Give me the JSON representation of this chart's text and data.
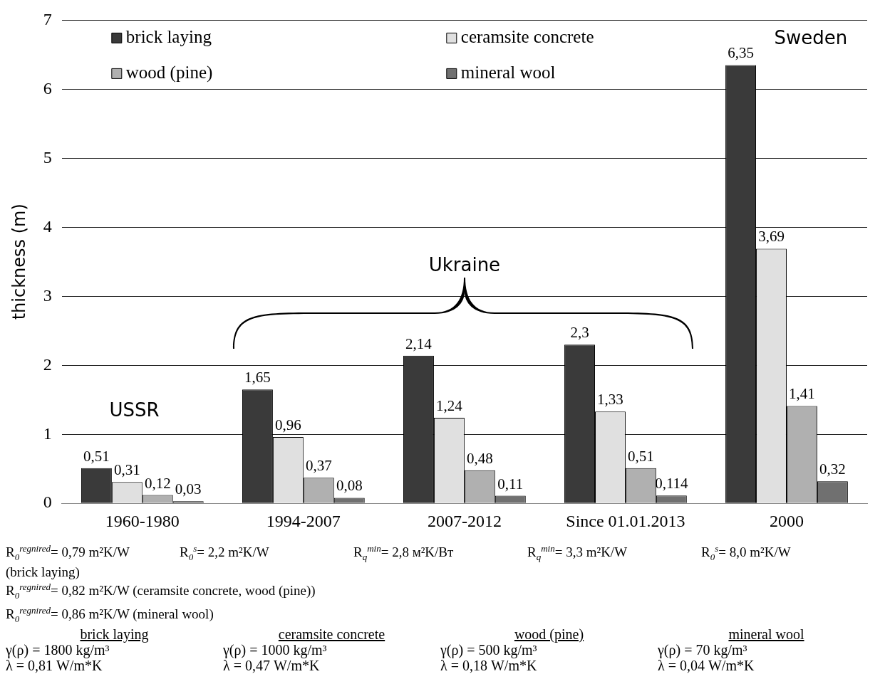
{
  "chart_data": {
    "type": "bar",
    "ylabel": "thickness (m)",
    "categories": [
      "1960-1980",
      "1994-2007",
      "2007-2012",
      "Since 01.01.2013",
      "2000"
    ],
    "series": [
      {
        "name": "brick laying",
        "color": "#3a3a3a",
        "values": [
          0.51,
          1.65,
          2.14,
          2.3,
          6.35
        ],
        "value_labels": [
          "0,51",
          "1,65",
          "2,14",
          "2,3",
          "6,35"
        ]
      },
      {
        "name": "ceramsite concrete",
        "color": "#e0e0e0",
        "values": [
          0.31,
          0.96,
          1.24,
          1.33,
          3.69
        ],
        "value_labels": [
          "0,31",
          "0,96",
          "1,24",
          "1,33",
          "3,69"
        ]
      },
      {
        "name": "wood (pine)",
        "color": "#b0b0b0",
        "values": [
          0.12,
          0.37,
          0.48,
          0.51,
          1.41
        ],
        "value_labels": [
          "0,12",
          "0,37",
          "0,48",
          "0,51",
          "1,41"
        ]
      },
      {
        "name": "mineral wool",
        "color": "#707070",
        "values": [
          0.03,
          0.08,
          0.11,
          0.114,
          0.32
        ],
        "value_labels": [
          "0,03",
          "0,08",
          "0,11",
          "0,114",
          "0,32"
        ]
      }
    ],
    "ylim": [
      0,
      7
    ],
    "yticks": [
      0,
      1,
      2,
      3,
      4,
      5,
      6,
      7
    ],
    "grid": "y",
    "legend": "top",
    "annotations": [
      "USSR",
      "Ukraine",
      "Sweden",
      "R$_{0}$$^{regnired}$= 0,79 m²K/W",
      "R$_{0}$$^{s}$= 2,2 m²K/W",
      "R$_{q}$$^{min}$= 2,8 м²K/Вт",
      "R$_{q}$$^{min}$= 3,3 m²K/W",
      "R$_{0}$$^{s}$= 8,0 m²K/W",
      "(brick laying)",
      "R$_{0}$$^{regnired}$= 0,82 m²K/W (ceramsite concrete, wood (pine))",
      "R$_{0}$$^{regnired}$= 0,86 m²K/W (mineral wool)",
      "brick laying",
      "γ(ρ) = 1800 kg/m³",
      "λ = 0,81 W/m*K",
      "ceramsite concrete",
      "γ(ρ) = 1000 kg/m³",
      "λ = 0,47 W/m*K",
      "wood (pine)",
      "γ(ρ) = 500 kg/m³",
      "λ = 0,18 W/m*K",
      "mineral wool",
      "γ(ρ) = 70 kg/m³",
      "λ = 0,04 W/m*K"
    ]
  }
}
